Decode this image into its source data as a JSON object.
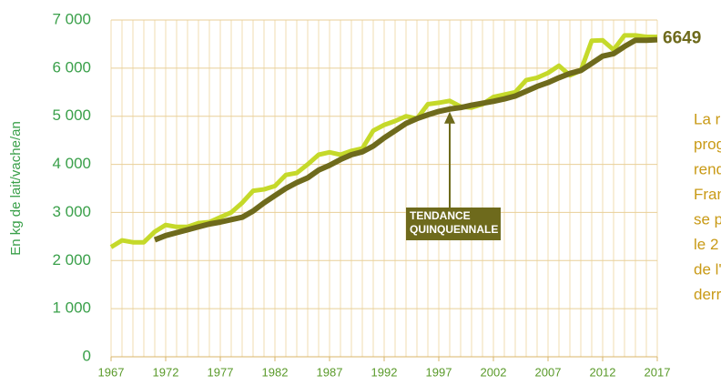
{
  "chart_data": {
    "type": "line",
    "y_label": "En kg de lait/vache/an",
    "x": [
      1967,
      1968,
      1969,
      1970,
      1971,
      1972,
      1973,
      1974,
      1975,
      1976,
      1977,
      1978,
      1979,
      1980,
      1981,
      1982,
      1983,
      1984,
      1985,
      1986,
      1987,
      1988,
      1989,
      1990,
      1991,
      1992,
      1993,
      1994,
      1995,
      1996,
      1997,
      1998,
      1999,
      2000,
      2001,
      2002,
      2003,
      2004,
      2005,
      2006,
      2007,
      2008,
      2009,
      2010,
      2011,
      2012,
      2013,
      2014,
      2015,
      2016,
      2017
    ],
    "series": [
      {
        "color": "#c5d92a",
        "values": [
          2280,
          2420,
          2380,
          2380,
          2600,
          2740,
          2700,
          2700,
          2780,
          2800,
          2900,
          3000,
          3200,
          3450,
          3480,
          3550,
          3780,
          3820,
          4000,
          4200,
          4250,
          4200,
          4280,
          4330,
          4700,
          4820,
          4900,
          5000,
          4950,
          5250,
          5280,
          5320,
          5200,
          5180,
          5250,
          5400,
          5450,
          5500,
          5750,
          5800,
          5900,
          6050,
          5850,
          5950,
          6570,
          6580,
          6380,
          6680,
          6680,
          6650,
          6649
        ]
      },
      {
        "color": "#6e6a1c",
        "values": [
          null,
          null,
          null,
          null,
          2430,
          2520,
          2580,
          2640,
          2700,
          2760,
          2800,
          2850,
          2900,
          3030,
          3200,
          3350,
          3500,
          3620,
          3720,
          3880,
          3980,
          4100,
          4200,
          4260,
          4380,
          4550,
          4700,
          4850,
          4950,
          5030,
          5100,
          5150,
          5180,
          5230,
          5270,
          5310,
          5360,
          5420,
          5520,
          5620,
          5700,
          5800,
          5890,
          5950,
          6100,
          6250,
          6300,
          6450,
          6580,
          6580,
          6590
        ]
      }
    ],
    "xlim": [
      1967,
      2017
    ],
    "xticks": [
      1967,
      1972,
      1977,
      1982,
      1987,
      1992,
      1997,
      2002,
      2007,
      2012,
      2017
    ],
    "ylim": [
      0,
      7000
    ],
    "yticks": [
      0,
      {
        "value": 1000,
        "label": "1 000"
      },
      {
        "value": 2000,
        "label": "2 000"
      },
      {
        "value": 3000,
        "label": "3 000"
      },
      {
        "value": 4000,
        "label": "4 000"
      },
      {
        "value": 5000,
        "label": "5 000"
      },
      {
        "value": 6000,
        "label": "6 000"
      },
      {
        "value": 7000,
        "label": "7 000"
      }
    ],
    "grid": true,
    "annotation": {
      "x": 1998,
      "lines": [
        "TENDANCE",
        "QUINQUENNALE"
      ]
    },
    "side_text": [
      "La re",
      "prog",
      "rend",
      "Fran",
      "se p",
      "le 2",
      "de l'",
      "derr"
    ]
  }
}
